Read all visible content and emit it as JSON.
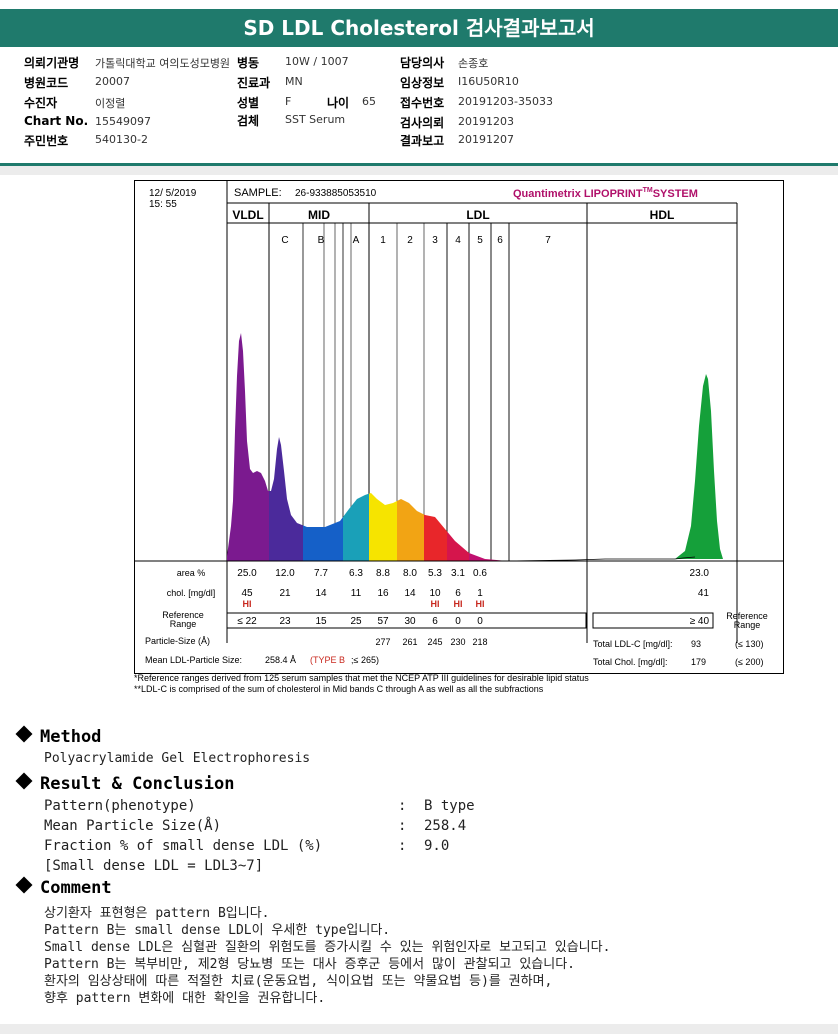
{
  "title": "SD LDL Cholesterol 검사결과보고서",
  "info": {
    "request_org_label": "의뢰기관명",
    "request_org": "가톨릭대학교 여의도성모병원",
    "hospital_code_label": "병원코드",
    "hospital_code": "20007",
    "patient_label": "수진자",
    "patient": "이정렬",
    "chart_no_label": "Chart No.",
    "chart_no": "15549097",
    "resident_no_label": "주민번호",
    "resident_no": "540130-2",
    "ward_label": "병동",
    "ward": "10W / 1007",
    "dept_label": "진료과",
    "dept": "MN",
    "sex_label": "성별",
    "sex": "F",
    "age_label": "나이",
    "age": "65",
    "specimen_label": "검체",
    "specimen": "SST Serum",
    "doctor_label": "담당의사",
    "doctor": "손종호",
    "clinical_info_label": "임상정보",
    "clinical_info": "I16U50R10",
    "receipt_no_label": "접수번호",
    "receipt_no": "20191203-35033",
    "test_request_label": "검사의뢰",
    "test_request": "20191203",
    "result_report_label": "결과보고",
    "result_report": "20191207"
  },
  "lipoprint": {
    "date": "12/ 5/2019",
    "time": "15: 55",
    "sample_label": "SAMPLE:",
    "sample_id": "26-933885053510",
    "brand": "Quantimetrix LIPOPRINT",
    "brand_tm": "TM",
    "brand_suffix": "SYSTEM",
    "bands": [
      {
        "name": "VLDL",
        "subs": []
      },
      {
        "name": "MID",
        "subs": [
          "C",
          "B",
          "A"
        ]
      },
      {
        "name": "LDL",
        "subs": [
          "1",
          "2",
          "3",
          "4",
          "5",
          "6",
          "7"
        ]
      },
      {
        "name": "HDL",
        "subs": []
      }
    ],
    "area_label": "area %",
    "area_values": [
      "25.0",
      "12.0",
      "7.7",
      "6.3",
      "8.8",
      "8.0",
      "5.3",
      "3.1",
      "0.6"
    ],
    "area_hdl": "23.0",
    "chol_label": "chol. [mg/dl]",
    "chol_values": [
      "45",
      "21",
      "14",
      "11",
      "16",
      "14",
      "10",
      "6",
      "1"
    ],
    "chol_hdl": "41",
    "chol_flags": [
      "HI",
      "",
      "",
      "",
      "",
      "",
      "HI",
      "HI",
      "HI"
    ],
    "ref_label_1": "Reference",
    "ref_label_2": "Range",
    "ref_values": [
      "≤ 22",
      "23",
      "15",
      "25",
      "57",
      "30",
      "6",
      "0",
      "0"
    ],
    "ref_hdl": "≥ 40",
    "ref_right_1": "Reference",
    "ref_right_2": "Range",
    "particle_size_label": "Particle-Size (Å)",
    "particle_sizes": [
      "277",
      "261",
      "245",
      "230",
      "218"
    ],
    "mean_ldl_label": "Mean LDL-Particle Size:",
    "mean_ldl_value": "258.4 Å",
    "mean_ldl_type": "(TYPE B",
    "mean_ldl_limit": ";≤ 265)",
    "total_ldl_label": "Total LDL-C [mg/dl]:",
    "total_ldl_value": "93",
    "total_ldl_ref": "(≤ 130)",
    "total_chol_label": "Total Chol. [mg/dl]:",
    "total_chol_value": "179",
    "total_chol_ref": "(≤ 200)",
    "footnote_1": "*Reference ranges derived from 125 serum samples that met the NCEP ATP III guidelines for desirable lipid status",
    "footnote_2": "**LDL-C is comprised of the sum of cholesterol in Mid bands C through A as well as all the subfractions"
  },
  "colors": {
    "vldl": "#7b1a8f",
    "mid_c": "#4b2a9b",
    "mid_b": "#1560c8",
    "mid_a": "#1aa0b8",
    "ldl1": "#f6e400",
    "ldl2": "#f2a414",
    "ldl3": "#e8262a",
    "ldl4": "#d5154c",
    "ldl5": "#c01070",
    "hdl": "#15a03a",
    "flag": "#c8281e",
    "header": "#1f7a6c"
  },
  "method": {
    "heading": "Method",
    "text": "Polyacrylamide Gel Electrophoresis"
  },
  "result": {
    "heading": "Result & Conclusion",
    "rows": [
      {
        "label": "Pattern(phenotype)",
        "value": "B type"
      },
      {
        "label": "Mean Particle Size(Å)",
        "value": "258.4"
      },
      {
        "label": "Fraction % of small dense LDL (%)",
        "value": "9.0"
      }
    ],
    "colon": ":",
    "note": "[Small dense LDL = LDL3~7]"
  },
  "comment": {
    "heading": "Comment",
    "lines": [
      "상기환자 표현형은 pattern B입니다.",
      "Pattern B는 small dense LDL이 우세한 type입니다.",
      "Small dense LDL은 심혈관 질환의 위험도를 증가시킬 수 있는 위험인자로 보고되고 있습니다.",
      "Pattern B는 복부비만, 제2형 당뇨병 또는 대사 증후군 등에서 많이 관찰되고 있습니다.",
      "환자의 임상상태에 따른 적절한 치료(운동요법, 식이요법 또는 약물요법 등)를 권하며,",
      "향후 pattern 변화에 대한 확인을 권유합니다."
    ]
  }
}
